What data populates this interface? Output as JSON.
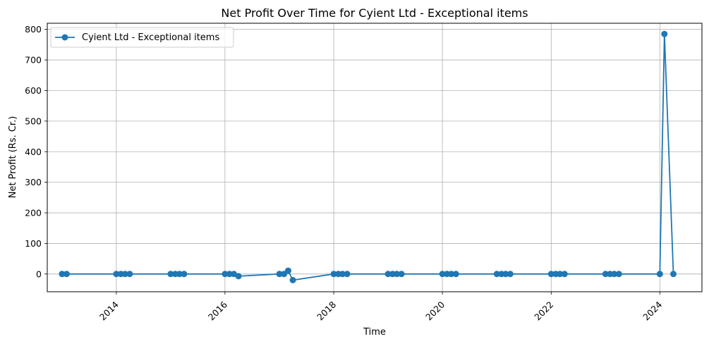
{
  "chart_data": {
    "type": "line",
    "title": "Net Profit Over Time for Cyient Ltd - Exceptional items",
    "xlabel": "Time",
    "ylabel": "Net Profit (Rs. Cr.)",
    "xlim": [
      "2012-09-24",
      "2024-10-10"
    ],
    "ylim": [
      -58,
      820
    ],
    "x_ticks": [
      "2014",
      "2016",
      "2018",
      "2020",
      "2022",
      "2024"
    ],
    "y_ticks": [
      "0",
      "100",
      "200",
      "300",
      "400",
      "500",
      "600",
      "700",
      "800"
    ],
    "grid": true,
    "legend_position": "top-left",
    "colors": {
      "series": "#1f77b4",
      "grid": "#b0b0b0"
    },
    "series": [
      {
        "name": "Cyient Ltd - Exceptional items",
        "x": [
          "2013-01-01",
          "2013-02-01",
          "2014-01-01",
          "2014-02-01",
          "2014-03-01",
          "2014-04-01",
          "2015-01-01",
          "2015-02-01",
          "2015-03-01",
          "2015-04-01",
          "2016-01-01",
          "2016-02-01",
          "2016-03-01",
          "2016-04-01",
          "2017-01-01",
          "2017-02-01",
          "2017-03-01",
          "2017-04-01",
          "2018-01-01",
          "2018-02-01",
          "2018-03-01",
          "2018-04-01",
          "2019-01-01",
          "2019-02-01",
          "2019-03-01",
          "2019-04-01",
          "2020-01-01",
          "2020-02-01",
          "2020-03-01",
          "2020-04-01",
          "2021-01-01",
          "2021-02-01",
          "2021-03-01",
          "2021-04-01",
          "2022-01-01",
          "2022-02-01",
          "2022-03-01",
          "2022-04-01",
          "2023-01-01",
          "2023-02-01",
          "2023-03-01",
          "2023-04-01",
          "2024-01-01",
          "2024-02-01",
          "2024-04-01"
        ],
        "values": [
          0,
          0,
          0,
          0,
          0,
          0,
          0,
          0,
          0,
          0,
          0,
          0,
          0,
          -7,
          0,
          0,
          11,
          -20,
          0,
          0,
          0,
          0,
          0,
          0,
          0,
          0,
          0,
          0,
          0,
          0,
          0,
          0,
          0,
          0,
          0,
          0,
          0,
          0,
          0,
          0,
          0,
          0,
          0,
          785,
          0
        ]
      }
    ]
  }
}
